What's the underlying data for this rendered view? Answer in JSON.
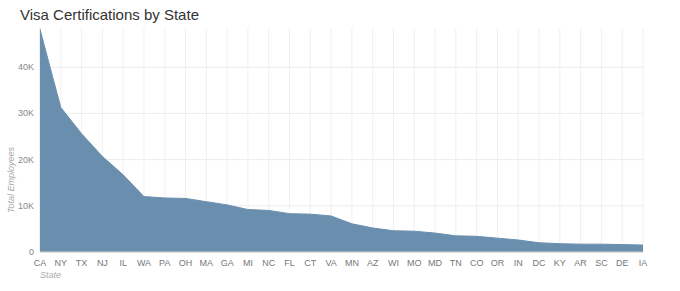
{
  "chart_data": {
    "type": "area",
    "title": "Visa Certifications by State",
    "x_label": "State",
    "y_label": "Total Employees",
    "categories": [
      "CA",
      "NY",
      "TX",
      "NJ",
      "IL",
      "WA",
      "PA",
      "OH",
      "MA",
      "GA",
      "MI",
      "NC",
      "FL",
      "CT",
      "VA",
      "MN",
      "AZ",
      "WI",
      "MO",
      "MD",
      "TN",
      "CO",
      "OR",
      "IN",
      "DC",
      "KY",
      "AR",
      "SC",
      "DE",
      "IA"
    ],
    "values": [
      48200,
      31300,
      25600,
      20700,
      16700,
      12000,
      11700,
      11600,
      10900,
      10200,
      9200,
      9000,
      8300,
      8200,
      7800,
      6100,
      5200,
      4600,
      4500,
      4100,
      3500,
      3400,
      3000,
      2600,
      2000,
      1800,
      1700,
      1700,
      1600,
      1500
    ],
    "color": "#6a8fae",
    "ylim": [
      0,
      48500
    ],
    "yticks": [
      0,
      {
        "value": 10000,
        "label": "10K"
      },
      {
        "value": 20000,
        "label": "20K"
      },
      {
        "value": 30000,
        "label": "30K"
      },
      {
        "value": 40000,
        "label": "40K"
      }
    ],
    "grid": true
  }
}
